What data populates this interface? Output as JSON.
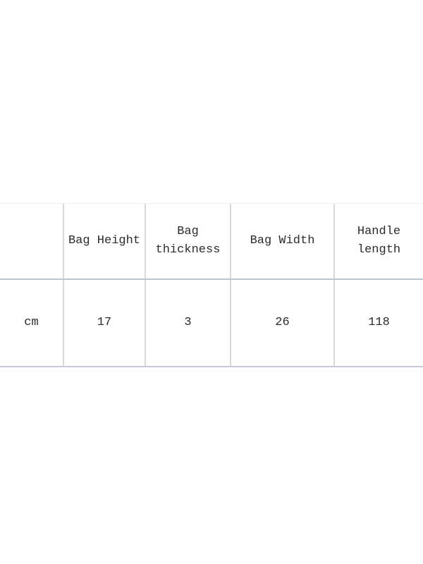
{
  "table": {
    "headers": [
      "",
      "Bag Height",
      "Bag thickness",
      "Bag Width",
      "Handle length"
    ],
    "rows": [
      [
        "cm",
        "17",
        "3",
        "26",
        "118"
      ]
    ]
  },
  "chart_data": {
    "type": "table",
    "title": "",
    "columns": [
      "",
      "Bag Height",
      "Bag thickness",
      "Bag Width",
      "Handle length"
    ],
    "rows": [
      [
        "cm",
        "17",
        "3",
        "26",
        "118"
      ]
    ],
    "unit": "cm",
    "values": {
      "bag_height": 17,
      "bag_thickness": 3,
      "bag_width": 26,
      "handle_length": 118
    }
  },
  "colors": {
    "background": "#ffffff",
    "grid_line_vertical": "#d6d8dd",
    "grid_line_horizontal": "#bcc3d2",
    "grid_line_bottom": "#c8cbdd",
    "text": "#2b2b2b"
  }
}
